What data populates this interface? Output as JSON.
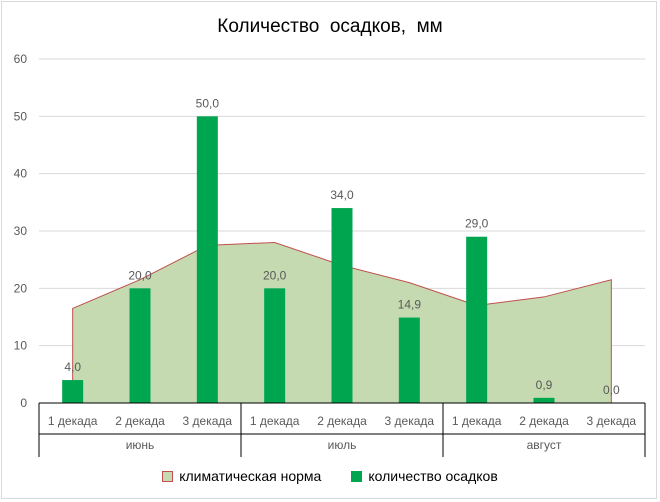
{
  "chart_data": {
    "type": "bar",
    "title": "Количество  осадков,  мм",
    "ylim": [
      0,
      60
    ],
    "yticks": [
      0,
      10,
      20,
      30,
      40,
      50,
      60
    ],
    "grid": true,
    "legend_position": "bottom",
    "categories": [
      "1 декада",
      "2 декада",
      "3 декада",
      "1 декада",
      "2 декада",
      "3 декада",
      "1 декада",
      "2 декада",
      "3 декада"
    ],
    "groups": [
      {
        "label": "июнь",
        "span": 3
      },
      {
        "label": "июль",
        "span": 3
      },
      {
        "label": "август",
        "span": 3
      }
    ],
    "series": [
      {
        "name": "климатическая норма",
        "type": "area",
        "values": [
          16.5,
          21.5,
          27.5,
          28,
          24,
          21,
          17,
          18.5,
          21.5
        ],
        "color": "#c5dab0",
        "line_color": "#c0504d"
      },
      {
        "name": "количество осадков",
        "type": "bar",
        "values": [
          4.0,
          20.0,
          50.0,
          20.0,
          34.0,
          14.9,
          29.0,
          0.9,
          0.0
        ],
        "labels": [
          "4,0",
          "20,0",
          "50,0",
          "20,0",
          "34,0",
          "14,9",
          "29,0",
          "0,9",
          "0,0"
        ],
        "color": "#00a550"
      }
    ]
  }
}
